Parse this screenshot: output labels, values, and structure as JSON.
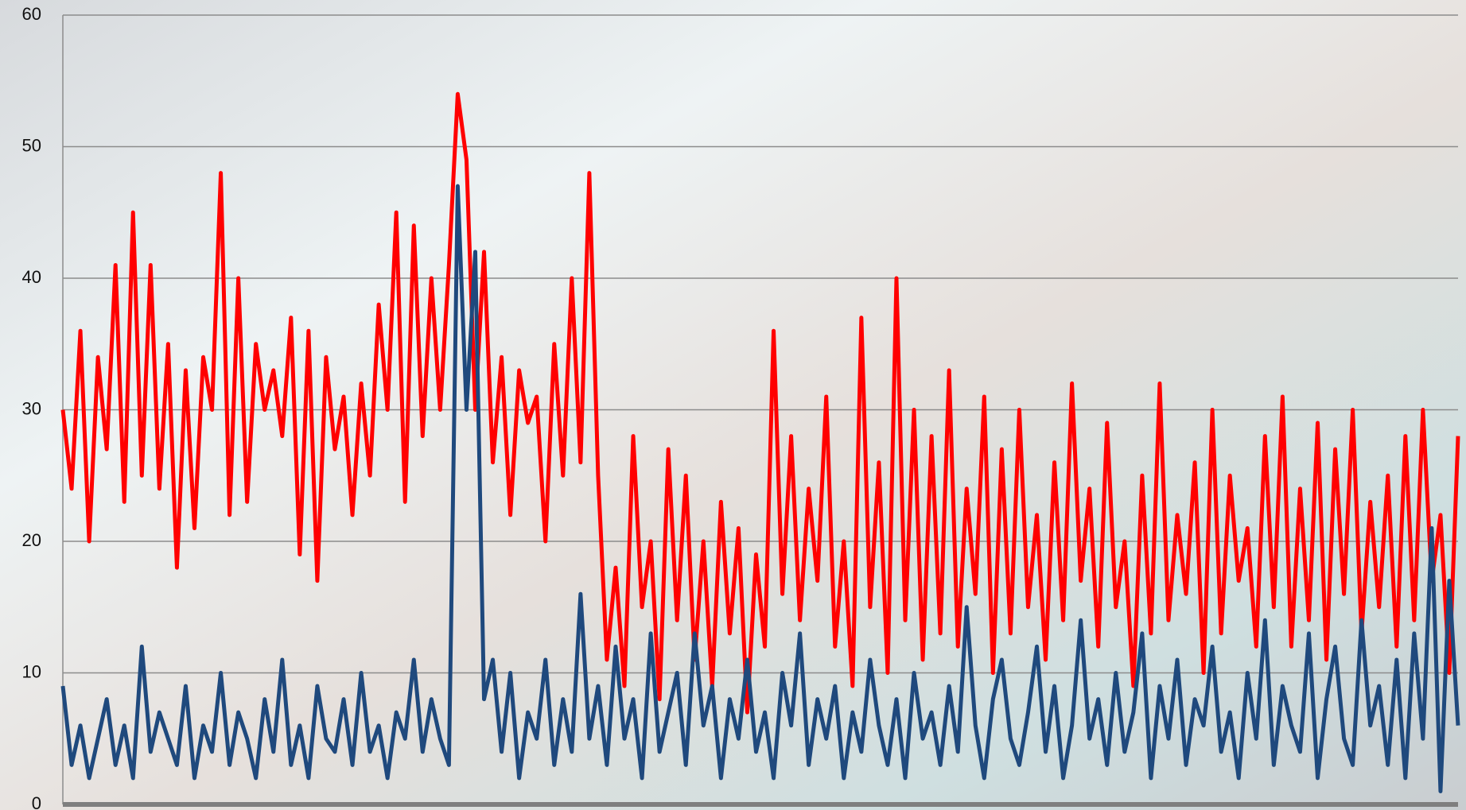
{
  "chart_data": {
    "type": "line",
    "ylim": [
      0,
      60
    ],
    "yticks": [
      0,
      10,
      20,
      30,
      40,
      50,
      60
    ],
    "grid": true,
    "series": [
      {
        "color": "#ff0000",
        "values": [
          30,
          24,
          36,
          20,
          34,
          27,
          41,
          23,
          45,
          25,
          41,
          24,
          35,
          18,
          33,
          21,
          34,
          30,
          48,
          22,
          40,
          23,
          35,
          30,
          33,
          28,
          37,
          19,
          36,
          17,
          34,
          27,
          31,
          22,
          32,
          25,
          38,
          30,
          45,
          23,
          44,
          28,
          40,
          30,
          41,
          54,
          49,
          30,
          42,
          26,
          34,
          22,
          33,
          29,
          31,
          20,
          35,
          25,
          40,
          26,
          48,
          25,
          11,
          18,
          9,
          28,
          15,
          20,
          8,
          27,
          14,
          25,
          11,
          20,
          9,
          23,
          13,
          21,
          7,
          19,
          12,
          36,
          16,
          28,
          14,
          24,
          17,
          31,
          12,
          20,
          9,
          37,
          15,
          26,
          10,
          40,
          14,
          30,
          11,
          28,
          13,
          33,
          12,
          24,
          16,
          31,
          10,
          27,
          13,
          30,
          15,
          22,
          11,
          26,
          14,
          32,
          17,
          24,
          12,
          29,
          15,
          20,
          9,
          25,
          13,
          32,
          14,
          22,
          16,
          26,
          10,
          30,
          13,
          25,
          17,
          21,
          12,
          28,
          15,
          31,
          12,
          24,
          14,
          29,
          11,
          27,
          16,
          30,
          13,
          23,
          15,
          25,
          12,
          28,
          14,
          30,
          17,
          22,
          10,
          28
        ]
      },
      {
        "color": "#1f497d",
        "values": [
          9,
          3,
          6,
          2,
          5,
          8,
          3,
          6,
          2,
          12,
          4,
          7,
          5,
          3,
          9,
          2,
          6,
          4,
          10,
          3,
          7,
          5,
          2,
          8,
          4,
          11,
          3,
          6,
          2,
          9,
          5,
          4,
          8,
          3,
          10,
          4,
          6,
          2,
          7,
          5,
          11,
          4,
          8,
          5,
          3,
          47,
          30,
          42,
          8,
          11,
          4,
          10,
          2,
          7,
          5,
          11,
          3,
          8,
          4,
          16,
          5,
          9,
          3,
          12,
          5,
          8,
          2,
          13,
          4,
          7,
          10,
          3,
          13,
          6,
          9,
          2,
          8,
          5,
          11,
          4,
          7,
          2,
          10,
          6,
          13,
          3,
          8,
          5,
          9,
          2,
          7,
          4,
          11,
          6,
          3,
          8,
          2,
          10,
          5,
          7,
          3,
          9,
          4,
          15,
          6,
          2,
          8,
          11,
          5,
          3,
          7,
          12,
          4,
          9,
          2,
          6,
          14,
          5,
          8,
          3,
          10,
          4,
          7,
          13,
          2,
          9,
          5,
          11,
          3,
          8,
          6,
          12,
          4,
          7,
          2,
          10,
          5,
          14,
          3,
          9,
          6,
          4,
          13,
          2,
          8,
          12,
          5,
          3,
          14,
          6,
          9,
          3,
          11,
          2,
          13,
          5,
          21,
          1,
          17,
          6
        ]
      }
    ]
  }
}
